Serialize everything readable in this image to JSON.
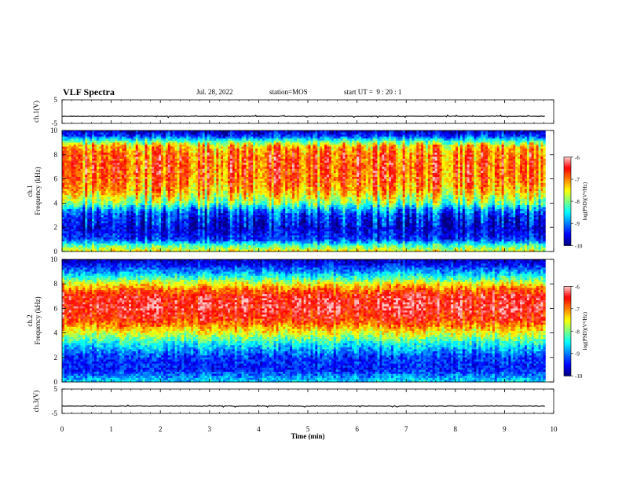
{
  "header": {
    "title": "VLF Spectra",
    "date": "Jul. 28, 2022",
    "station": "station=MOS",
    "start_ut": "start UT =  9 : 20 : 1"
  },
  "chart_data": [
    {
      "type": "line",
      "panel": "ch1-waveform",
      "ylabel": "ch.1(V)",
      "ylim": [
        -5,
        5
      ],
      "yticks": [
        5,
        -5
      ],
      "xlim": [
        0,
        10
      ],
      "series": [
        {
          "values_note": "",
          "level": -2
        }
      ]
    },
    {
      "type": "heatmap",
      "panel": "ch1-spectrogram",
      "ylabel": "ch.1\nFrequency (kHz)",
      "ylim": [
        0,
        10
      ],
      "yticks": [
        "0",
        "2",
        "4",
        "6",
        "8",
        "10"
      ],
      "xlim": [
        0,
        9.83
      ],
      "colorbar": {
        "label": "log(PSD)(V²/Hz)",
        "range": [
          -10,
          -6
        ],
        "ticks": [
          "-6",
          "-7",
          "-8",
          "-9",
          "-10"
        ]
      },
      "band_profile_khz": [
        0,
        0.5,
        1,
        2,
        3,
        3.5,
        4,
        5,
        6,
        7,
        8,
        8.5,
        8.8,
        9.2,
        9.5,
        10
      ],
      "band_profile_logpsd": [
        -7.5,
        -8.2,
        -9.3,
        -9.6,
        -9.3,
        -8.8,
        -8.0,
        -7.2,
        -6.9,
        -6.8,
        -6.9,
        -7.1,
        -7.4,
        -8.4,
        -9.2,
        -9.8
      ]
    },
    {
      "type": "heatmap",
      "panel": "ch2-spectrogram",
      "ylabel": "ch.2\nFrequency (kHz)",
      "ylim": [
        0,
        10
      ],
      "yticks": [
        "0",
        "2",
        "4",
        "6",
        "8",
        "10"
      ],
      "xlim": [
        0,
        9.83
      ],
      "colorbar": {
        "label": "log(PSD)(V²/Hz)",
        "range": [
          -10,
          -6
        ],
        "ticks": [
          "-6",
          "-7",
          "-8",
          "-9",
          "-10"
        ]
      },
      "band_profile_khz": [
        0,
        0.5,
        1,
        2,
        3,
        4,
        5,
        6,
        7,
        7.5,
        8,
        8.5,
        9,
        9.5,
        10
      ],
      "band_profile_logpsd": [
        -8.6,
        -9.0,
        -9.4,
        -9.3,
        -8.6,
        -7.6,
        -6.7,
        -6.4,
        -6.5,
        -6.9,
        -7.5,
        -8.3,
        -8.9,
        -9.4,
        -9.8
      ]
    },
    {
      "type": "line",
      "panel": "ch3-waveform",
      "ylabel": "ch.3(V)",
      "ylim": [
        -5,
        5
      ],
      "yticks": [
        5,
        -5
      ],
      "xlim": [
        0,
        10
      ],
      "xlabel": "Time (min)",
      "xticks": [
        "0",
        "1",
        "2",
        "3",
        "4",
        "5",
        "6",
        "7",
        "8",
        "9",
        "10"
      ],
      "series": [
        {
          "level": -2
        }
      ]
    }
  ],
  "colors": {
    "axis": "#000000",
    "colormap": [
      "#00007f",
      "#0000ff",
      "#007fff",
      "#00ffff",
      "#7fff7f",
      "#ffff00",
      "#ff7f00",
      "#ff0000",
      "#ffcccc"
    ]
  }
}
